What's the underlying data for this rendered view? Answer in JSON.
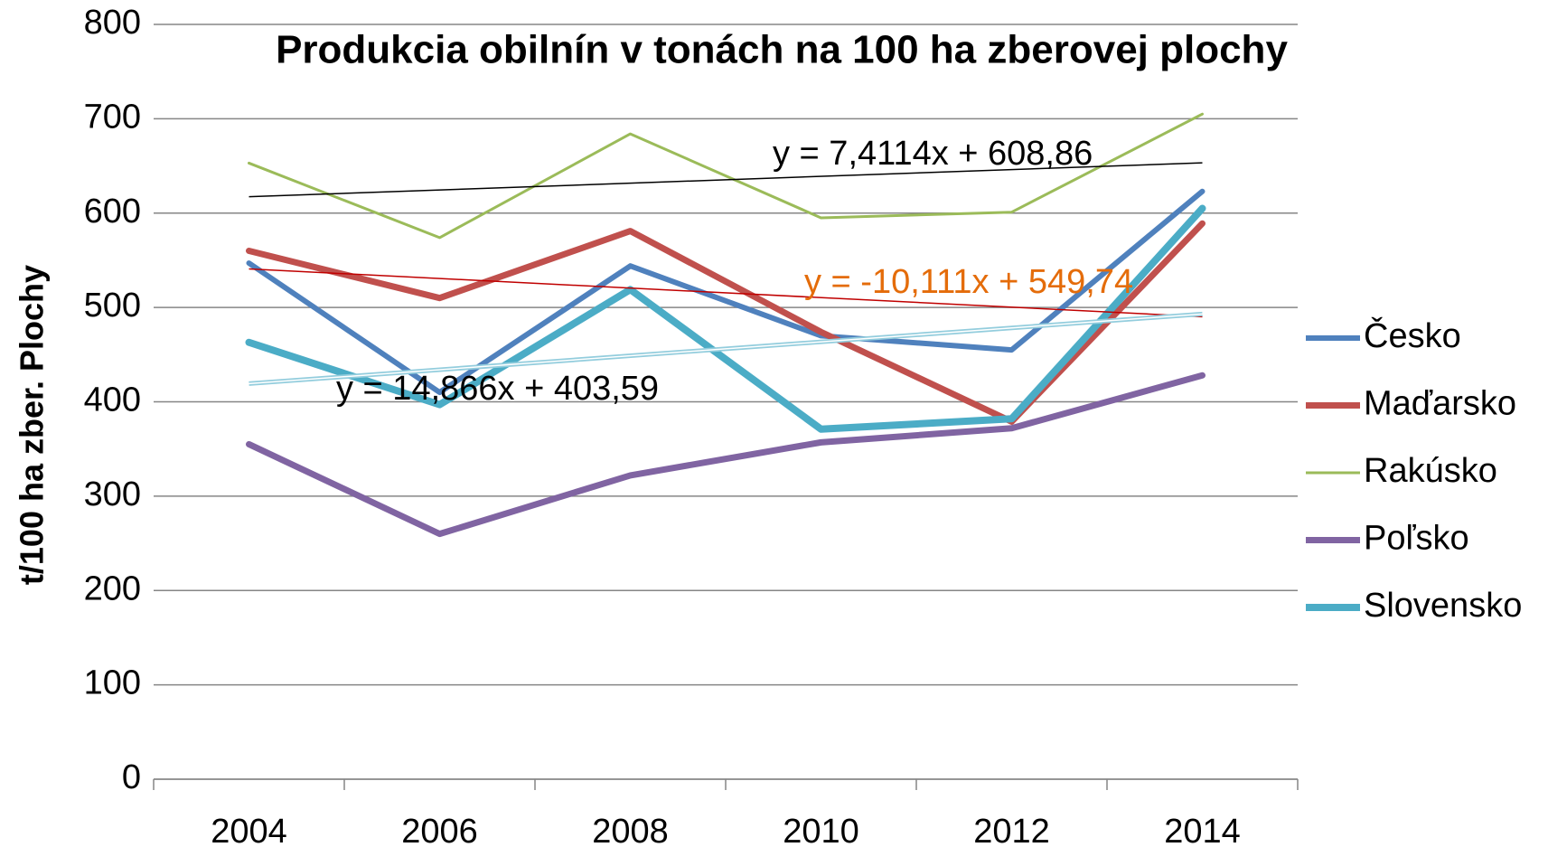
{
  "chart_data": {
    "type": "line",
    "title": "Produkcia obilnín v tonách na 100 ha zberovej plochy",
    "y_label": "t/100 ha zber. Plochy",
    "categories": [
      "2004",
      "2006",
      "2008",
      "2010",
      "2012",
      "2014"
    ],
    "series": [
      {
        "name": "Česko",
        "color": "#4f81bd",
        "width": 6,
        "values": [
          547,
          410,
          544,
          470,
          455,
          623
        ]
      },
      {
        "name": "Maďarsko",
        "color": "#c0504d",
        "width": 7,
        "values": [
          560,
          510,
          581,
          474,
          379,
          589
        ],
        "trendline": "#c00000"
      },
      {
        "name": "Rakúsko",
        "color": "#9bbb59",
        "width": 3,
        "values": [
          653,
          574,
          684,
          595,
          601,
          705
        ],
        "trendline": "#000000"
      },
      {
        "name": "Poľsko",
        "color": "#8064a2",
        "width": 7,
        "values": [
          355,
          260,
          322,
          357,
          372,
          428
        ]
      },
      {
        "name": "Slovensko",
        "color": "#4bacc6",
        "width": 8,
        "values": [
          463,
          397,
          519,
          371,
          382,
          605
        ],
        "trendline": "#93cddd"
      }
    ],
    "annotations": [
      {
        "text": "y = 7,4114x + 608,86",
        "color": "#000000"
      },
      {
        "text": "y = -10,111x + 549,74",
        "color": "#e46c0a"
      },
      {
        "text": "y = 14,866x + 403,59",
        "color": "#000000"
      }
    ],
    "ylim": [
      0,
      800
    ],
    "yticks": [
      0,
      100,
      200,
      300,
      400,
      500,
      600,
      700,
      800
    ],
    "grid": true,
    "legend": "right"
  }
}
